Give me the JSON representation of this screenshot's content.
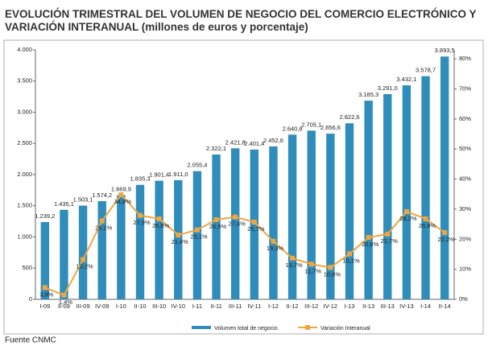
{
  "chart_data": {
    "type": "bar",
    "title": [
      "EVOLUCIÓN TRIMESTRAL DEL VOLUMEN DE NEGOCIO DEL COMERCIO ELECTRÓNICO Y",
      "VARIACIÓN INTERANUAL (millones de euros y porcentaje)"
    ],
    "source": "Fuente CNMC",
    "categories": [
      "I-09",
      "II-09",
      "III-09",
      "IV-09",
      "I-10",
      "II-10",
      "III-10",
      "IV-10",
      "I-11",
      "II-11",
      "III-11",
      "IV-11",
      "I-12",
      "II-12",
      "III-12",
      "IV-12",
      "I-13",
      "II-13",
      "III-13",
      "IV-13",
      "I-14",
      "II-14"
    ],
    "series": [
      {
        "name": "Volumen total de negocio",
        "type": "bar",
        "color": "#2f8dbb",
        "values": [
          1239.2,
          1435.1,
          1503.1,
          1574.2,
          1669.9,
          1835.3,
          1901.4,
          1911.0,
          2055.4,
          2322.1,
          2421.8,
          2401.4,
          2452.6,
          2640.8,
          2705.1,
          2656.6,
          2822.6,
          3185.3,
          3291.0,
          3432.1,
          3578.7,
          3893.5
        ],
        "value_labels": [
          "1.239,2",
          "1.435,1",
          "1.503,1",
          "1.574,2",
          "1.669,9",
          "1.835,3",
          "1.901,4",
          "1.911,0",
          "2.055,4",
          "2.322,1",
          "2.421,8",
          "2.401,4",
          "2.452,6",
          "2.640,8",
          "2.705,1",
          "2.656,6",
          "2.822,6",
          "3.185,3",
          "3.291,0",
          "3.432,1",
          "3.578,7",
          "3.893,5"
        ]
      },
      {
        "name": "Variación Interanual",
        "type": "line",
        "axis": "y2",
        "color": "#f0a640",
        "values": [
          3.9,
          1.4,
          13.2,
          26.1,
          34.8,
          27.9,
          26.8,
          21.4,
          23.1,
          26.5,
          27.4,
          25.7,
          19.3,
          13.7,
          11.7,
          10.6,
          15.1,
          20.6,
          21.7,
          29.2,
          26.8,
          22.2
        ],
        "value_labels": [
          "3,9%",
          "1,4%",
          "13,2%",
          "26,1%",
          "34,8%",
          "27,9%",
          "26,8%",
          "21,4%",
          "23,1%",
          "26,5%",
          "27,4%",
          "25,7%",
          "19,3%",
          "13,7%",
          "11,7%",
          "10,6%",
          "15,1%",
          "20,6%",
          "21,7%",
          "29,2%",
          "26,8%",
          "22,2%"
        ]
      }
    ],
    "ylim": [
      0,
      4000
    ],
    "yticks": [
      0,
      {
        "value": 500,
        "label": "500"
      },
      {
        "value": 1000,
        "label": "1.000"
      },
      {
        "value": 1500,
        "label": "1.500"
      },
      {
        "value": 2000,
        "label": "2.000"
      },
      {
        "value": 2500,
        "label": "2.500"
      },
      {
        "value": 3000,
        "label": "3.000"
      },
      {
        "value": 3500,
        "label": "3.500"
      },
      {
        "value": 4000,
        "label": "4.000"
      }
    ],
    "y2lim": [
      0,
      83
    ],
    "y2ticks": [
      {
        "value": 0,
        "label": "0%"
      },
      {
        "value": 10,
        "label": "10%"
      },
      {
        "value": 20,
        "label": "20%"
      },
      {
        "value": 30,
        "label": "30%"
      },
      {
        "value": 40,
        "label": "40%"
      },
      {
        "value": 50,
        "label": "50%"
      },
      {
        "value": 60,
        "label": "60%"
      },
      {
        "value": 70,
        "label": "70%"
      },
      {
        "value": 80,
        "label": "80%"
      }
    ]
  }
}
